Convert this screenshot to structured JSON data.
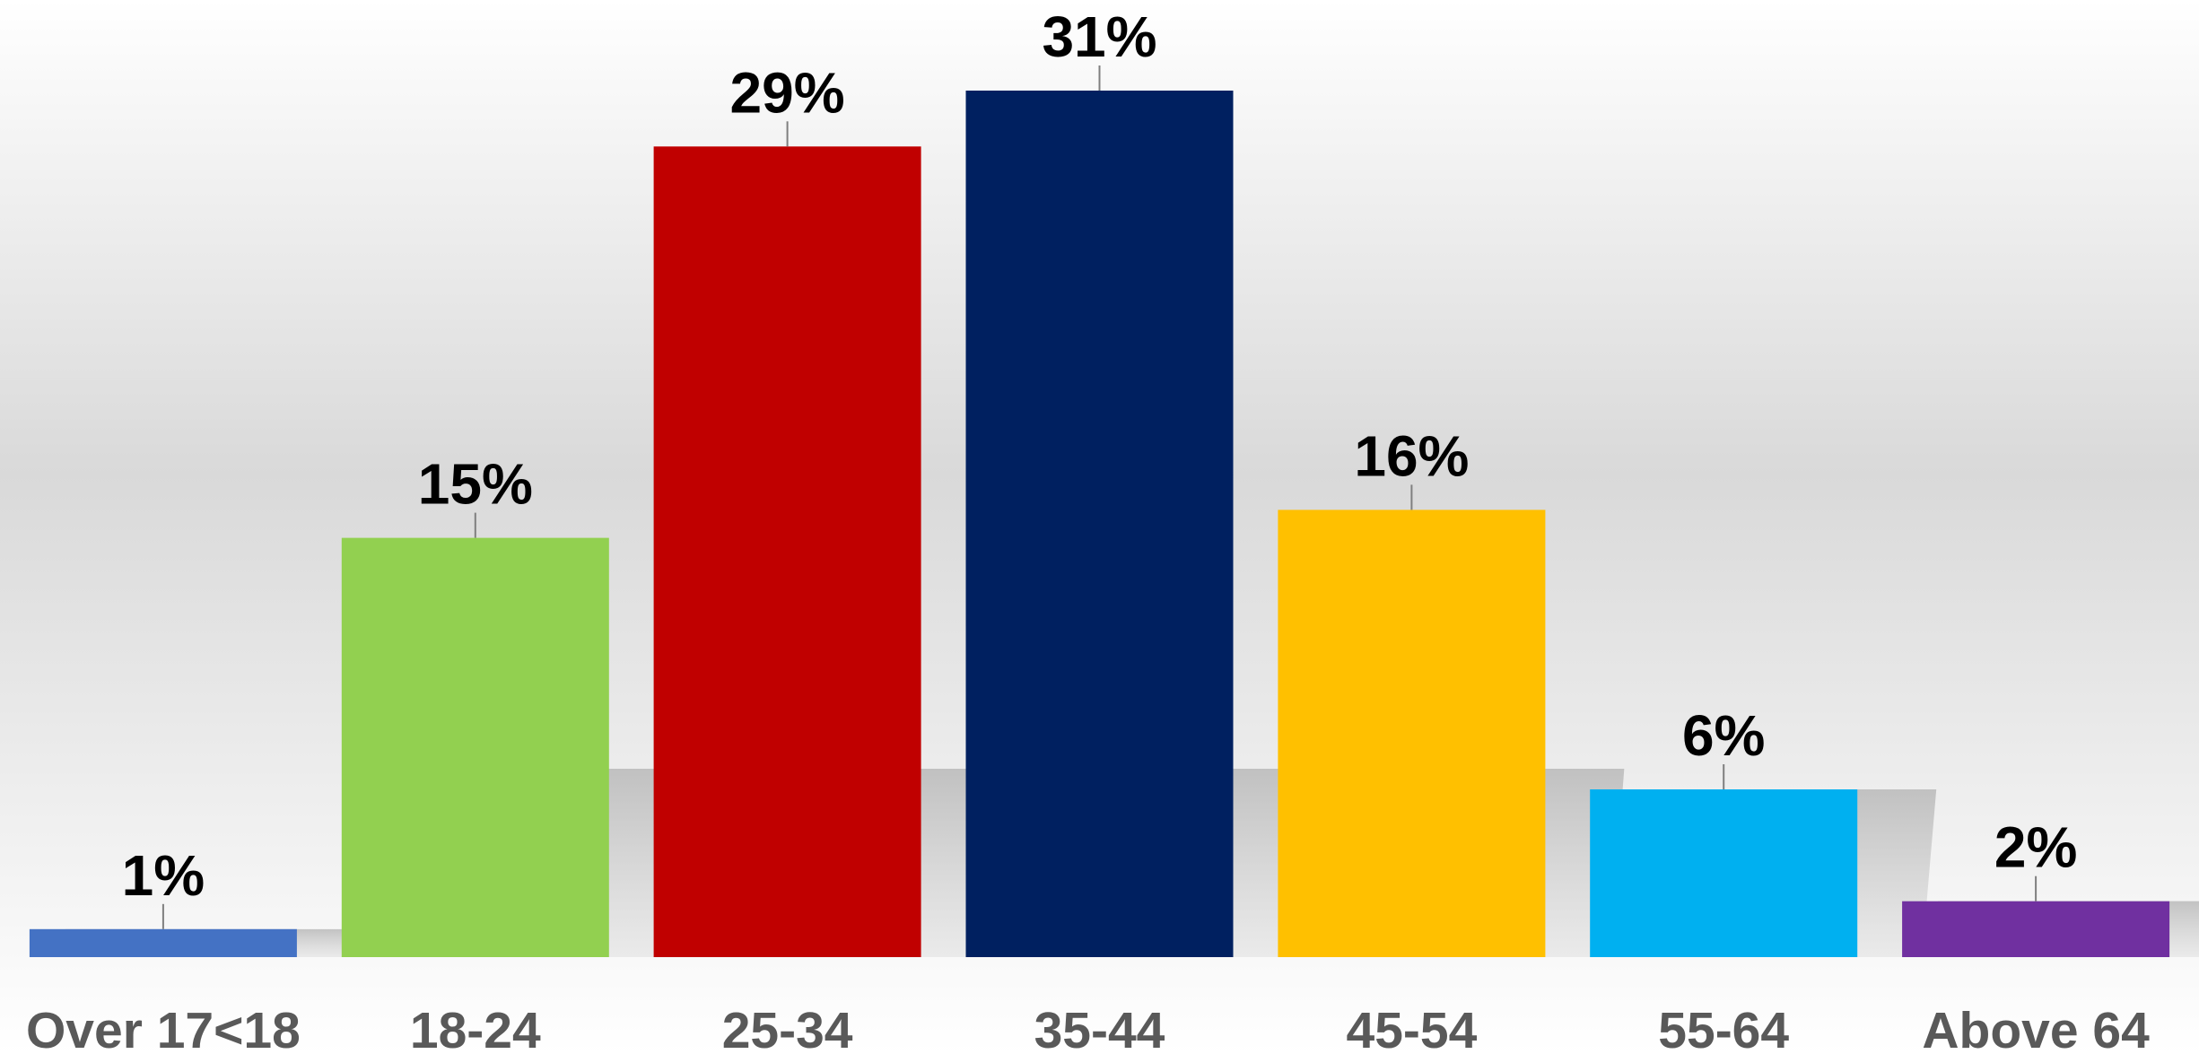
{
  "chart_data": {
    "type": "bar",
    "title": "",
    "xlabel": "",
    "ylabel": "",
    "ylim": [
      0,
      31
    ],
    "grid": false,
    "legend": "none",
    "categories": [
      "Over 17<18",
      "18-24",
      "25-34",
      "35-44",
      "45-54",
      "55-64",
      "Above 64"
    ],
    "values": [
      1,
      15,
      29,
      31,
      16,
      6,
      2
    ],
    "data_labels": [
      "1%",
      "15%",
      "29%",
      "31%",
      "16%",
      "6%",
      "2%"
    ],
    "colors": [
      "#4472C4",
      "#92D050",
      "#C00000",
      "#002060",
      "#FFC000",
      "#00B0F0",
      "#7030A0"
    ]
  }
}
